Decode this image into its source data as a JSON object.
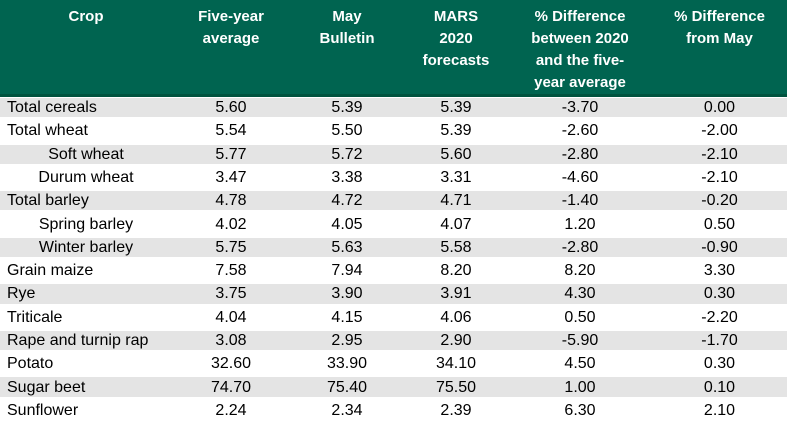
{
  "colors": {
    "header_bg": "#006450",
    "header_edge": "#00533F",
    "header_text": "#ffffff",
    "stripe_bg": "#e4e4e4",
    "row_bg": "#ffffff",
    "body_text": "#000000"
  },
  "table": {
    "header": {
      "crop": "Crop",
      "five_year_average": "Five-year\naverage",
      "may_bulletin": "May\nBulletin",
      "mars_2020_forecasts": "MARS\n2020\nforecasts",
      "pct_diff_2020_vs_five_year_avg": "% Difference\nbetween 2020\nand the five-\nyear average",
      "pct_diff_from_may": "% Difference\nfrom May"
    },
    "value_fields": [
      "five_year_average",
      "may_bulletin",
      "mars_2020_forecasts",
      "pct_diff_2020_vs_five_year_avg",
      "pct_diff_from_may"
    ],
    "rows": [
      {
        "crop": "Total cereals",
        "sub": false,
        "five_year_average": "5.60",
        "may_bulletin": "5.39",
        "mars_2020_forecasts": "5.39",
        "pct_diff_2020_vs_five_year_avg": "-3.70",
        "pct_diff_from_may": "0.00"
      },
      {
        "crop": "Total wheat",
        "sub": false,
        "five_year_average": "5.54",
        "may_bulletin": "5.50",
        "mars_2020_forecasts": "5.39",
        "pct_diff_2020_vs_five_year_avg": "-2.60",
        "pct_diff_from_may": "-2.00"
      },
      {
        "crop": "Soft wheat",
        "sub": true,
        "five_year_average": "5.77",
        "may_bulletin": "5.72",
        "mars_2020_forecasts": "5.60",
        "pct_diff_2020_vs_five_year_avg": "-2.80",
        "pct_diff_from_may": "-2.10"
      },
      {
        "crop": "Durum wheat",
        "sub": true,
        "five_year_average": "3.47",
        "may_bulletin": "3.38",
        "mars_2020_forecasts": "3.31",
        "pct_diff_2020_vs_five_year_avg": "-4.60",
        "pct_diff_from_may": "-2.10"
      },
      {
        "crop": "Total barley",
        "sub": false,
        "five_year_average": "4.78",
        "may_bulletin": "4.72",
        "mars_2020_forecasts": "4.71",
        "pct_diff_2020_vs_five_year_avg": "-1.40",
        "pct_diff_from_may": "-0.20"
      },
      {
        "crop": "Spring barley",
        "sub": true,
        "five_year_average": "4.02",
        "may_bulletin": "4.05",
        "mars_2020_forecasts": "4.07",
        "pct_diff_2020_vs_five_year_avg": "1.20",
        "pct_diff_from_may": "0.50"
      },
      {
        "crop": "Winter barley",
        "sub": true,
        "five_year_average": "5.75",
        "may_bulletin": "5.63",
        "mars_2020_forecasts": "5.58",
        "pct_diff_2020_vs_five_year_avg": "-2.80",
        "pct_diff_from_may": "-0.90"
      },
      {
        "crop": "Grain maize",
        "sub": false,
        "five_year_average": "7.58",
        "may_bulletin": "7.94",
        "mars_2020_forecasts": "8.20",
        "pct_diff_2020_vs_five_year_avg": "8.20",
        "pct_diff_from_may": "3.30"
      },
      {
        "crop": "Rye",
        "sub": false,
        "five_year_average": "3.75",
        "may_bulletin": "3.90",
        "mars_2020_forecasts": "3.91",
        "pct_diff_2020_vs_five_year_avg": "4.30",
        "pct_diff_from_may": "0.30"
      },
      {
        "crop": "Triticale",
        "sub": false,
        "five_year_average": "4.04",
        "may_bulletin": "4.15",
        "mars_2020_forecasts": "4.06",
        "pct_diff_2020_vs_five_year_avg": "0.50",
        "pct_diff_from_may": "-2.20"
      },
      {
        "crop": "Rape and turnip rap",
        "sub": false,
        "five_year_average": "3.08",
        "may_bulletin": "2.95",
        "mars_2020_forecasts": "2.90",
        "pct_diff_2020_vs_five_year_avg": "-5.90",
        "pct_diff_from_may": "-1.70"
      },
      {
        "crop": "Potato",
        "sub": false,
        "five_year_average": "32.60",
        "may_bulletin": "33.90",
        "mars_2020_forecasts": "34.10",
        "pct_diff_2020_vs_five_year_avg": "4.50",
        "pct_diff_from_may": "0.30"
      },
      {
        "crop": "Sugar beet",
        "sub": false,
        "five_year_average": "74.70",
        "may_bulletin": "75.40",
        "mars_2020_forecasts": "75.50",
        "pct_diff_2020_vs_five_year_avg": "1.00",
        "pct_diff_from_may": "0.10"
      },
      {
        "crop": "Sunflower",
        "sub": false,
        "five_year_average": "2.24",
        "may_bulletin": "2.34",
        "mars_2020_forecasts": "2.39",
        "pct_diff_2020_vs_five_year_avg": "6.30",
        "pct_diff_from_may": "2.10"
      }
    ]
  }
}
